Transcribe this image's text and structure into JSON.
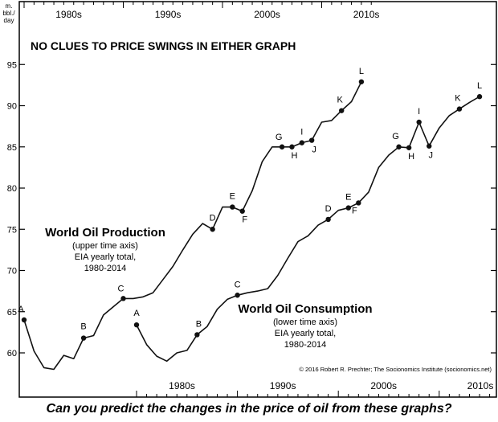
{
  "headline": "NO CLUES TO PRICE SWINGS IN EITHER GRAPH",
  "caption": "Can you predict the changes in the price of oil from these graphs?",
  "credit": "© 2016 Robert R. Prechter; The Socionomics Institute (socionomics.net)",
  "chart_data": {
    "type": "line",
    "ylabel": "m. bbl./ day",
    "ylim": [
      56,
      96
    ],
    "yticks": [
      60,
      65,
      70,
      75,
      80,
      85,
      90,
      95
    ],
    "upper_axis_labels": [
      "1980s",
      "1990s",
      "2000s",
      "2010s"
    ],
    "lower_axis_labels": [
      "1980s",
      "1990s",
      "2000s",
      "2010s"
    ],
    "grid": false,
    "series": [
      {
        "name": "World Oil Production",
        "notes": [
          "(upper time axis)",
          "EIA yearly total,",
          "1980-2014"
        ],
        "x": [
          1980,
          1981,
          1982,
          1983,
          1984,
          1985,
          1986,
          1987,
          1988,
          1989,
          1990,
          1991,
          1992,
          1993,
          1994,
          1995,
          1996,
          1997,
          1998,
          1999,
          2000,
          2001,
          2002,
          2003,
          2004,
          2005,
          2006,
          2007,
          2008,
          2009,
          2010,
          2011,
          2012,
          2013,
          2014
        ],
        "values": [
          64.0,
          60.2,
          58.2,
          58.0,
          59.7,
          59.3,
          61.8,
          62.1,
          64.6,
          65.6,
          66.6,
          66.6,
          66.8,
          67.3,
          68.9,
          70.5,
          72.5,
          74.4,
          75.7,
          75.0,
          77.7,
          77.7,
          77.2,
          79.7,
          83.2,
          85.0,
          85.0,
          85.0,
          85.5,
          85.8,
          88.0,
          88.2,
          89.4,
          90.5,
          92.9
        ],
        "labels": [
          {
            "x": 1980,
            "label": "A"
          },
          {
            "x": 1986,
            "label": "B"
          },
          {
            "x": 1990,
            "label": "C"
          },
          {
            "x": 1999,
            "label": "D"
          },
          {
            "x": 2001,
            "label": "E"
          },
          {
            "x": 2002,
            "label": "F"
          },
          {
            "x": 2006,
            "label": "G"
          },
          {
            "x": 2007,
            "label": "H"
          },
          {
            "x": 2008,
            "label": "I"
          },
          {
            "x": 2009,
            "label": "J"
          },
          {
            "x": 2012,
            "label": "K"
          },
          {
            "x": 2014,
            "label": "L"
          }
        ]
      },
      {
        "name": "World Oil Consumption",
        "notes": [
          "(lower time axis)",
          "EIA yearly total,",
          "1980-2014"
        ],
        "x": [
          1980,
          1981,
          1982,
          1983,
          1984,
          1985,
          1986,
          1987,
          1988,
          1989,
          1990,
          1991,
          1992,
          1993,
          1994,
          1995,
          1996,
          1997,
          1998,
          1999,
          2000,
          2001,
          2002,
          2003,
          2004,
          2005,
          2006,
          2007,
          2008,
          2009,
          2010,
          2011,
          2012,
          2013,
          2014
        ],
        "values": [
          63.4,
          61.0,
          59.6,
          59.0,
          60.0,
          60.3,
          62.2,
          63.2,
          65.3,
          66.5,
          67.0,
          67.3,
          67.5,
          67.8,
          69.4,
          71.5,
          73.5,
          74.2,
          75.5,
          76.2,
          77.3,
          77.6,
          78.2,
          79.5,
          82.5,
          84.0,
          85.0,
          84.9,
          88.0,
          85.1,
          87.3,
          88.8,
          89.6,
          90.4,
          91.1
        ],
        "labels": [
          {
            "x": 1980,
            "label": "A"
          },
          {
            "x": 1986,
            "label": "B"
          },
          {
            "x": 1990,
            "label": "C"
          },
          {
            "x": 1999,
            "label": "D"
          },
          {
            "x": 2001,
            "label": "E"
          },
          {
            "x": 2002,
            "label": "F"
          },
          {
            "x": 2006,
            "label": "G"
          },
          {
            "x": 2007,
            "label": "H"
          },
          {
            "x": 2008,
            "label": "I"
          },
          {
            "x": 2009,
            "label": "J"
          },
          {
            "x": 2012,
            "label": "K"
          },
          {
            "x": 2014,
            "label": "L"
          }
        ]
      }
    ]
  }
}
